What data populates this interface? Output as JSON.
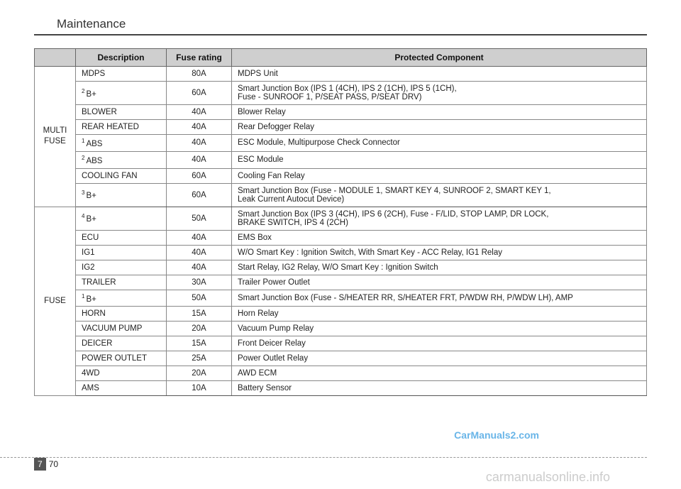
{
  "section_title": "Maintenance",
  "table": {
    "headers": [
      "",
      "Description",
      "Fuse rating",
      "Protected Component"
    ],
    "groups": [
      {
        "label": "MULTI\nFUSE",
        "rows": [
          {
            "sup": "",
            "desc": "MDPS",
            "rating": "80A",
            "component": "MDPS Unit"
          },
          {
            "sup": "2",
            "desc": "B+",
            "rating": "60A",
            "component": "Smart Junction Box (IPS 1 (4CH), IPS 2 (1CH), IPS 5 (1CH),\nFuse - SUNROOF 1, P/SEAT PASS, P/SEAT DRV)"
          },
          {
            "sup": "",
            "desc": "BLOWER",
            "rating": "40A",
            "component": "Blower Relay"
          },
          {
            "sup": "",
            "desc": "REAR HEATED",
            "rating": "40A",
            "component": "Rear Defogger Relay"
          },
          {
            "sup": "1",
            "desc": "ABS",
            "rating": "40A",
            "component": "ESC Module, Multipurpose Check Connector"
          },
          {
            "sup": "2",
            "desc": "ABS",
            "rating": "40A",
            "component": "ESC Module"
          },
          {
            "sup": "",
            "desc": "COOLING FAN",
            "rating": "60A",
            "component": "Cooling Fan Relay"
          },
          {
            "sup": "3",
            "desc": "B+",
            "rating": "60A",
            "component": "Smart Junction Box (Fuse - MODULE 1, SMART KEY 4, SUNROOF 2, SMART KEY 1,\nLeak Current Autocut Device)"
          }
        ]
      },
      {
        "label": "FUSE",
        "rows": [
          {
            "sup": "4",
            "desc": "B+",
            "rating": "50A",
            "component": "Smart Junction Box (IPS 3 (4CH), IPS 6 (2CH), Fuse - F/LID, STOP LAMP, DR LOCK,\nBRAKE SWITCH, IPS 4 (2CH)"
          },
          {
            "sup": "",
            "desc": "ECU",
            "rating": "40A",
            "component": "EMS Box"
          },
          {
            "sup": "",
            "desc": "IG1",
            "rating": "40A",
            "component": "W/O Smart Key : Ignition Switch, With Smart Key - ACC Relay, IG1 Relay"
          },
          {
            "sup": "",
            "desc": "IG2",
            "rating": "40A",
            "component": "Start Relay, IG2 Relay, W/O Smart Key : Ignition Switch"
          },
          {
            "sup": "",
            "desc": "TRAILER",
            "rating": "30A",
            "component": "Trailer Power Outlet"
          },
          {
            "sup": "1",
            "desc": "B+",
            "rating": "50A",
            "component": "Smart Junction Box (Fuse - S/HEATER RR, S/HEATER FRT, P/WDW RH, P/WDW LH), AMP"
          },
          {
            "sup": "",
            "desc": "HORN",
            "rating": "15A",
            "component": "Horn Relay"
          },
          {
            "sup": "",
            "desc": "VACUUM PUMP",
            "rating": "20A",
            "component": "Vacuum Pump Relay"
          },
          {
            "sup": "",
            "desc": "DEICER",
            "rating": "15A",
            "component": "Front Deicer Relay"
          },
          {
            "sup": "",
            "desc": "POWER OUTLET",
            "rating": "25A",
            "component": "Power Outlet Relay"
          },
          {
            "sup": "",
            "desc": "4WD",
            "rating": "20A",
            "component": "AWD ECM"
          },
          {
            "sup": "",
            "desc": "AMS",
            "rating": "10A",
            "component": "Battery Sensor"
          }
        ]
      }
    ]
  },
  "watermarks": {
    "wm1": "CarManuals2.com",
    "wm2": "carmanualsonline.info"
  },
  "page": {
    "section": "7",
    "number": "70"
  },
  "colors": {
    "header_bg": "#cfcfcf",
    "border": "#888",
    "wm1_color": "#69b5e8",
    "wm2_color": "#ccc",
    "page_section_bg": "#555"
  }
}
